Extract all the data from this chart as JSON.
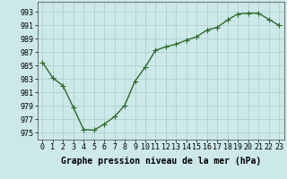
{
  "x": [
    0,
    1,
    2,
    3,
    4,
    5,
    6,
    7,
    8,
    9,
    10,
    11,
    12,
    13,
    14,
    15,
    16,
    17,
    18,
    19,
    20,
    21,
    22,
    23
  ],
  "y": [
    985.5,
    983.2,
    982.0,
    978.8,
    975.5,
    975.4,
    976.3,
    977.4,
    979.1,
    982.7,
    984.8,
    987.3,
    987.8,
    988.2,
    988.8,
    989.3,
    990.3,
    990.7,
    991.8,
    992.7,
    992.8,
    992.8,
    991.9,
    991.0
  ],
  "line_color": "#2d6a2d",
  "marker": "+",
  "marker_color": "#2d6a2d",
  "bg_color": "#cce8e8",
  "grid_color": "#aacccc",
  "xlabel": "Graphe pression niveau de la mer (hPa)",
  "xlabel_fontsize": 7.0,
  "ylabel_ticks": [
    975,
    977,
    979,
    981,
    983,
    985,
    987,
    989,
    991,
    993
  ],
  "ylim": [
    974.0,
    994.5
  ],
  "xlim": [
    -0.5,
    23.5
  ],
  "tick_fontsize": 6.0,
  "line_width": 1.0,
  "marker_size": 4
}
